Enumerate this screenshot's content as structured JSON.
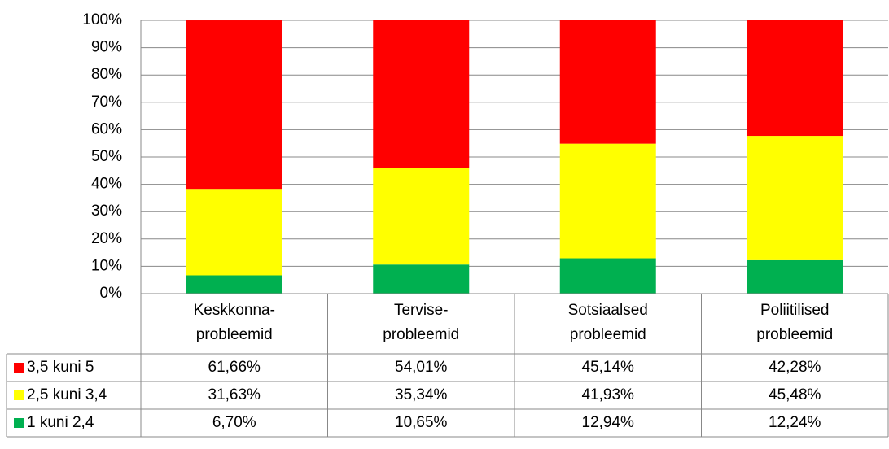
{
  "chart_data": {
    "type": "stacked_bar",
    "categories": [
      [
        "Keskkonna-",
        "probleemid"
      ],
      [
        "Tervise-",
        "probleemid"
      ],
      [
        "Sotsiaalsed",
        "probleemid"
      ],
      [
        "Poliitilised",
        "probleemid"
      ]
    ],
    "series": [
      {
        "name": "3,5 kuni 5",
        "color": "#ff0000",
        "values": [
          61.66,
          54.01,
          45.14,
          42.28
        ],
        "value_labels": [
          "61,66%",
          "54,01%",
          "45,14%",
          "42,28%"
        ]
      },
      {
        "name": "2,5 kuni 3,4",
        "color": "#ffff00",
        "values": [
          31.63,
          35.34,
          41.93,
          45.48
        ],
        "value_labels": [
          "31,63%",
          "35,34%",
          "41,93%",
          "45,48%"
        ]
      },
      {
        "name": "1 kuni 2,4",
        "color": "#00b050",
        "values": [
          6.7,
          10.65,
          12.94,
          12.24
        ],
        "value_labels": [
          "6,70%",
          "10,65%",
          "12,94%",
          "12,24%"
        ]
      }
    ],
    "ylim": [
      0,
      100
    ],
    "yticks": [
      {
        "value": 0,
        "label": "0%"
      },
      {
        "value": 10,
        "label": "10%"
      },
      {
        "value": 20,
        "label": "20%"
      },
      {
        "value": 30,
        "label": "30%"
      },
      {
        "value": 40,
        "label": "40%"
      },
      {
        "value": 50,
        "label": "50%"
      },
      {
        "value": 60,
        "label": "60%"
      },
      {
        "value": 70,
        "label": "70%"
      },
      {
        "value": 80,
        "label": "80%"
      },
      {
        "value": 90,
        "label": "90%"
      },
      {
        "value": 100,
        "label": "100%"
      }
    ],
    "grid": true
  }
}
